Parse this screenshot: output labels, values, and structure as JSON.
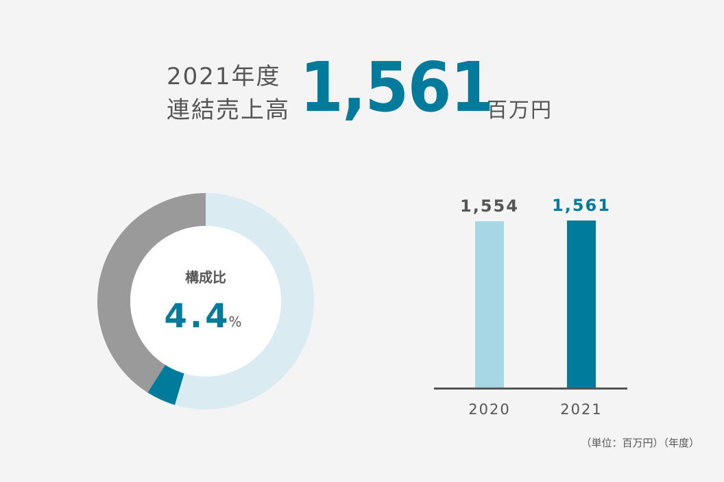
{
  "headline": {
    "year": "2021年度",
    "label": "連結売上高",
    "value": "1,561",
    "unit": "百万円"
  },
  "colors": {
    "accent": "#007b9c",
    "light_accent": "#a6d7e4",
    "pale_accent": "#daebf1",
    "gray": "#9a9a9a",
    "text": "#555555",
    "axis": "#555555",
    "background": "#f4f4f4"
  },
  "chart_data": [
    {
      "type": "pie",
      "donut": true,
      "title": "構成比",
      "center_value": "4.4",
      "center_unit": "%",
      "slices": [
        {
          "value": 54.6,
          "color": "#daebf1"
        },
        {
          "value": 4.4,
          "color": "#007b9c",
          "highlight": true
        },
        {
          "value": 41.0,
          "color": "#9a9a9a"
        }
      ]
    },
    {
      "type": "bar",
      "categories": [
        "2020",
        "2021"
      ],
      "values": [
        1554,
        1561
      ],
      "value_labels": [
        "1,554",
        "1,561"
      ],
      "colors": [
        "#a6d7e4",
        "#007b9c"
      ],
      "label_colors": [
        "#555555",
        "#007b9c"
      ],
      "ylim": [
        0,
        1600
      ],
      "note": "（単位：百万円）（年度）"
    }
  ]
}
